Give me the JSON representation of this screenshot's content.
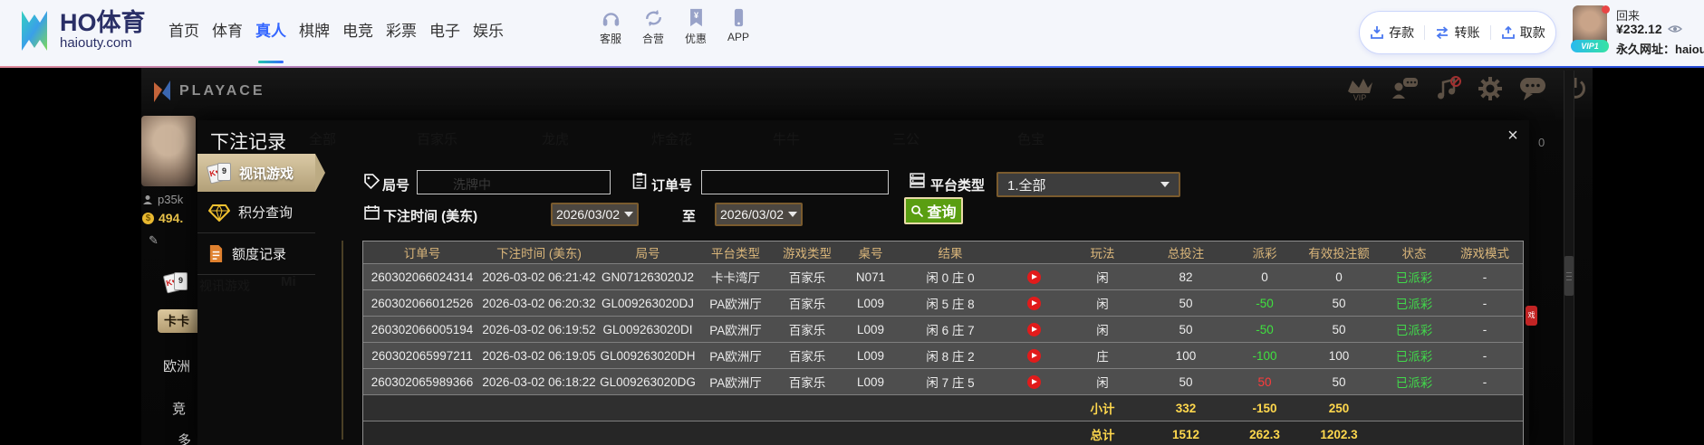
{
  "nav": {
    "brand": {
      "title": "HO体育",
      "domain": "haiouty.com"
    },
    "items": [
      "首页",
      "体育",
      "真人",
      "棋牌",
      "电竞",
      "彩票",
      "电子",
      "娱乐"
    ],
    "active_item": "真人",
    "quick": [
      {
        "label": "客服"
      },
      {
        "label": "合营"
      },
      {
        "label": "优惠"
      },
      {
        "label": "APP"
      }
    ],
    "wallet": [
      {
        "label": "存款"
      },
      {
        "label": "转账"
      },
      {
        "label": "取款"
      }
    ],
    "user": {
      "greeting": "回来",
      "balance": "¥232.12",
      "vip_badge": "VIP1",
      "site_url_label": "永久网址：haiouty"
    }
  },
  "lobby": {
    "brand": "PLAYACE",
    "vip_label": "VIP",
    "player": {
      "username": "p35k",
      "coins": "494."
    },
    "side_items": {
      "kaka": "卡卡",
      "europe": "欧洲",
      "jing": "竞",
      "duo": "多",
      "video_tab": "视讯游戏",
      "mini": "Mi"
    },
    "game_tabs": [
      "全部",
      "百家乐",
      "龙虎",
      "炸金花",
      "牛牛",
      "三公",
      "色宝"
    ],
    "bleed": {
      "zero": "0",
      "k": "K",
      "badge": "戏",
      "shuffling": "洗牌中"
    }
  },
  "modal": {
    "title": "下注记录",
    "close_label": "×",
    "tabs": [
      "视讯游戏",
      "积分查询",
      "额度记录"
    ],
    "filters": {
      "round": "局号",
      "order": "订单号",
      "platform": "平台类型",
      "platform_value": "1.全部",
      "bet_time": "下注时间 (美东)",
      "date_from": "2026/03/02",
      "date_to": "2026/03/02",
      "to": "至",
      "search": "查询"
    },
    "table": {
      "headers": [
        "订单号",
        "下注时间 (美东)",
        "局号",
        "平台类型",
        "游戏类型",
        "桌号",
        "结果",
        "",
        "玩法",
        "总投注",
        "派彩",
        "有效投注额",
        "状态",
        "游戏模式"
      ],
      "rows": [
        {
          "order": "260302066024314",
          "time": "2026-03-02 06:21:42",
          "round": "GN071263020J2",
          "platform": "卡卡湾厅",
          "game": "百家乐",
          "table_no": "N071",
          "result": "闲 0 庄 0",
          "play": "闲",
          "total_bet": "82",
          "payout": "0",
          "payout_color": "white",
          "valid_bet": "0",
          "status": "已派彩",
          "mode": "-"
        },
        {
          "order": "260302066012526",
          "time": "2026-03-02 06:20:32",
          "round": "GL009263020DJ",
          "platform": "PA欧洲厅",
          "game": "百家乐",
          "table_no": "L009",
          "result": "闲 5 庄 8",
          "play": "闲",
          "total_bet": "50",
          "payout": "-50",
          "payout_color": "green",
          "valid_bet": "50",
          "status": "已派彩",
          "mode": "-"
        },
        {
          "order": "260302066005194",
          "time": "2026-03-02 06:19:52",
          "round": "GL009263020DI",
          "platform": "PA欧洲厅",
          "game": "百家乐",
          "table_no": "L009",
          "result": "闲 6 庄 7",
          "play": "闲",
          "total_bet": "50",
          "payout": "-50",
          "payout_color": "green",
          "valid_bet": "50",
          "status": "已派彩",
          "mode": "-"
        },
        {
          "order": "260302065997211",
          "time": "2026-03-02 06:19:05",
          "round": "GL009263020DH",
          "platform": "PA欧洲厅",
          "game": "百家乐",
          "table_no": "L009",
          "result": "闲 8 庄 2",
          "play": "庄",
          "total_bet": "100",
          "payout": "-100",
          "payout_color": "green",
          "valid_bet": "100",
          "status": "已派彩",
          "mode": "-"
        },
        {
          "order": "260302065989366",
          "time": "2026-03-02 06:18:22",
          "round": "GL009263020DG",
          "platform": "PA欧洲厅",
          "game": "百家乐",
          "table_no": "L009",
          "result": "闲 7 庄 5",
          "play": "闲",
          "total_bet": "50",
          "payout": "50",
          "payout_color": "red",
          "valid_bet": "50",
          "status": "已派彩",
          "mode": "-"
        }
      ],
      "subtotal": {
        "label": "小计",
        "total_bet": "332",
        "payout": "-150",
        "valid_bet": "250"
      },
      "grand_total": {
        "label": "总计",
        "total_bet": "1512",
        "payout": "262.3",
        "valid_bet": "1202.3"
      }
    }
  },
  "colors": {
    "accent_gold": "#d9b57a",
    "row_green": "#3fe03f",
    "row_red": "#ff3b3b",
    "totals_yellow": "#ffd84d",
    "status_green": "#41d94b",
    "brand_navy": "#2a2f66",
    "active_blue": "#3567ff",
    "search_green": "#5a9e12"
  }
}
